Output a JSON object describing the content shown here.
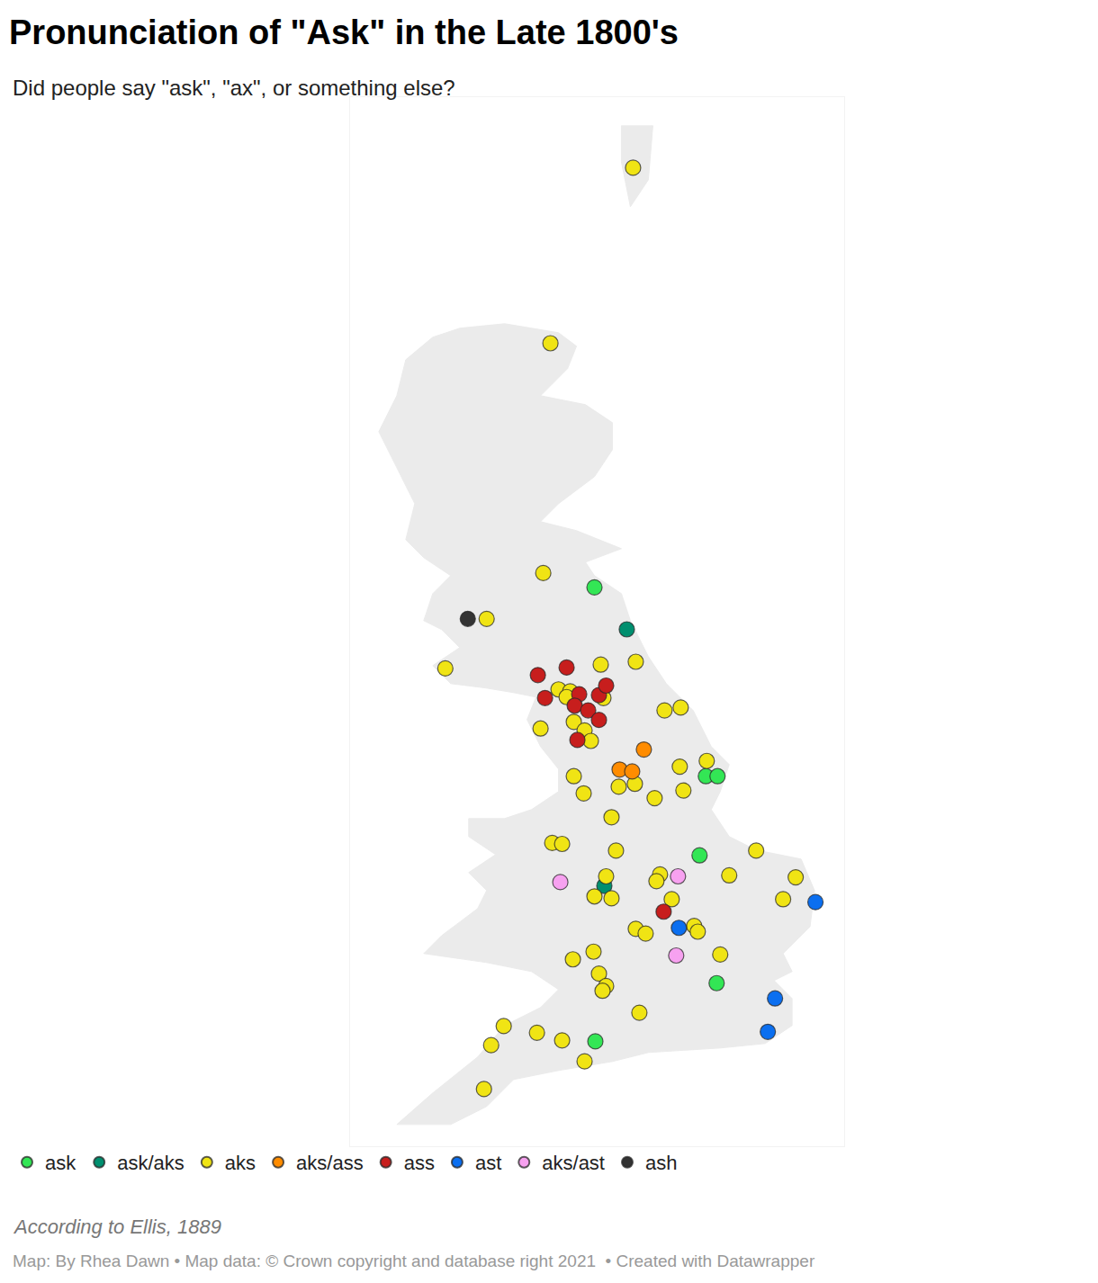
{
  "chart_data": {
    "type": "scatter",
    "title": "Pronunciation of \"Ask\" in the Late 1800's",
    "subtitle": "Did people say \"ask\", \"ax\", or something else?",
    "caption": "According to Ellis, 1889",
    "source": "Map: By Rhea Dawn • Map data: © Crown copyright and database right 2021  • Created with Datawrapper",
    "xlim": [
      -8,
      3
    ],
    "ylim": [
      49.9,
      60.9
    ],
    "tick_labels": false,
    "grid": false,
    "legend": "bottom",
    "series": [
      {
        "name": "ask",
        "color": "#33e655",
        "x": [
          -2.56,
          -0.08,
          0.18,
          -0.22,
          0.16,
          -2.54
        ],
        "y": [
          55.76,
          53.78,
          53.78,
          52.95,
          51.61,
          51.0
        ]
      },
      {
        "name": "ask/aks",
        "color": "#008f6f",
        "x": [
          -1.84,
          -2.34
        ],
        "y": [
          55.32,
          52.63
        ]
      },
      {
        "name": "aks",
        "color": "#f0e414",
        "x": [
          -1.7,
          -3.54,
          -3.7,
          -4.96,
          -5.88,
          -2.42,
          -1.64,
          -3.36,
          -3.1,
          -3.18,
          -2.36,
          -3.76,
          -3.02,
          -2.78,
          -2.64,
          -1.0,
          -0.64,
          -0.06,
          -0.66,
          -3.02,
          -2.02,
          -1.66,
          -2.8,
          -1.22,
          -0.58,
          -2.18,
          -3.5,
          -3.28,
          -2.08,
          1.04,
          -2.3,
          -1.1,
          0.44,
          1.92,
          -1.18,
          -2.56,
          -2.18,
          -0.84,
          1.64,
          -0.34,
          -0.26,
          -1.64,
          -1.42,
          -2.58,
          -3.04,
          0.24,
          -2.46,
          -2.3,
          -2.38,
          -1.56,
          -4.58,
          -3.84,
          -3.28,
          -4.86,
          -2.78,
          -5.02
        ],
        "y": [
          60.16,
          58.32,
          55.91,
          55.43,
          54.91,
          54.95,
          54.98,
          54.69,
          54.67,
          54.61,
          54.6,
          54.28,
          54.35,
          54.26,
          54.15,
          54.47,
          54.5,
          53.94,
          53.88,
          53.78,
          53.67,
          53.7,
          53.6,
          53.55,
          53.63,
          53.35,
          53.08,
          53.07,
          53.0,
          53.0,
          52.73,
          52.75,
          52.74,
          52.72,
          52.68,
          52.52,
          52.5,
          52.49,
          52.49,
          52.21,
          52.15,
          52.18,
          52.13,
          51.94,
          51.86,
          51.91,
          51.71,
          51.58,
          51.53,
          51.3,
          51.16,
          51.09,
          51.01,
          50.96,
          50.79,
          50.5
        ]
      },
      {
        "name": "aks/ass",
        "color": "#ff8c00",
        "x": [
          -1.46,
          -2.0,
          -1.72
        ],
        "y": [
          54.06,
          53.85,
          53.83
        ]
      },
      {
        "name": "ass",
        "color": "#c71e1d",
        "x": [
          -3.82,
          -3.18,
          -3.66,
          -2.9,
          -3.0,
          -2.46,
          -2.3,
          -2.7,
          -2.46,
          -2.94,
          -1.02
        ],
        "y": [
          54.84,
          54.92,
          54.6,
          54.64,
          54.52,
          54.63,
          54.73,
          54.47,
          54.37,
          54.16,
          52.36
        ]
      },
      {
        "name": "ast",
        "color": "#0b6ff0",
        "x": [
          2.36,
          -0.68,
          1.46,
          1.3
        ],
        "y": [
          52.46,
          52.19,
          51.45,
          51.1
        ]
      },
      {
        "name": "aks/ast",
        "color": "#f7a1f0",
        "x": [
          -3.32,
          -0.7,
          -0.74
        ],
        "y": [
          52.67,
          52.73,
          51.9
        ]
      },
      {
        "name": "ash",
        "color": "#333333",
        "x": [
          -5.38
        ],
        "y": [
          55.43
        ]
      }
    ]
  }
}
